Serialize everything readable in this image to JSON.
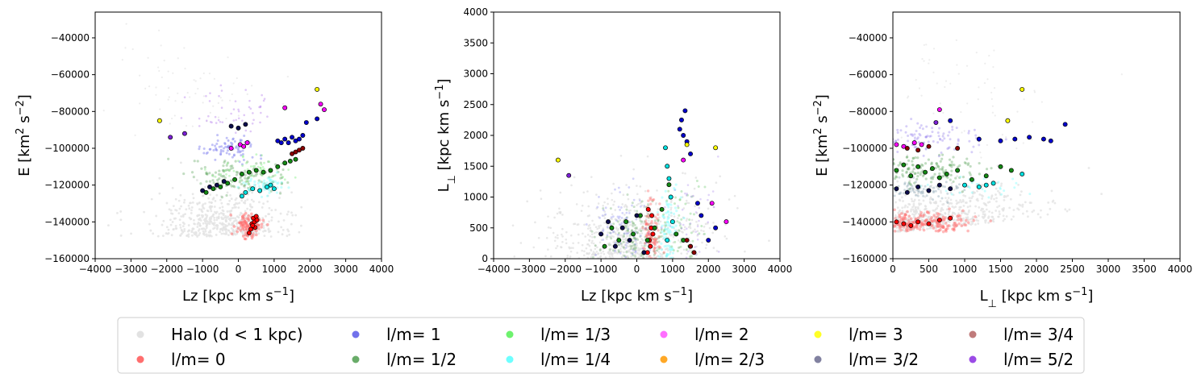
{
  "legend": {
    "entries": [
      {
        "label": "Halo (d < 1 kpc)",
        "color": "#e2e2e2"
      },
      {
        "label": "l/m= 0",
        "color": "#ff5555"
      },
      {
        "label": "l/m= 1",
        "color": "#5858e8"
      },
      {
        "label": "l/m= 1/2",
        "color": "#4f9d4f"
      },
      {
        "label": "l/m= 1/3",
        "color": "#55f055"
      },
      {
        "label": "l/m= 1/4",
        "color": "#55ffff"
      },
      {
        "label": "l/m= 2",
        "color": "#ff55ff"
      },
      {
        "label": "l/m= 2/3",
        "color": "#ff9900"
      },
      {
        "label": "l/m= 3",
        "color": "#ffff00"
      },
      {
        "label": "l/m= 3/2",
        "color": "#6b6b8f"
      },
      {
        "label": "l/m= 3/4",
        "color": "#b56464"
      },
      {
        "label": "l/m= 5/2",
        "color": "#8a2be2"
      }
    ]
  },
  "chart_data": [
    {
      "type": "scatter",
      "xlabel": "Lz [kpc km s$^{-1}$]",
      "ylabel": "E [km$^2$ s$^{-2}$]",
      "xlim": [
        -4000,
        4000
      ],
      "ylim": [
        -160000,
        -26000
      ],
      "xticks": [
        "−4000",
        "−3000",
        "−2000",
        "−1000",
        "0",
        "1000",
        "2000",
        "3000",
        "4000"
      ],
      "xtick_values": [
        -4000,
        -3000,
        -2000,
        -1000,
        0,
        1000,
        2000,
        3000,
        4000
      ],
      "yticks": [
        "−40000",
        "−60000",
        "−80000",
        "−100000",
        "−120000",
        "−140000",
        "−160000"
      ],
      "ytick_values": [
        -40000,
        -60000,
        -80000,
        -100000,
        -120000,
        -140000,
        -160000
      ],
      "series": [
        {
          "name": "l/m= 0",
          "x": [
            420,
            380,
            450,
            500,
            470,
            350,
            400,
            520,
            300
          ],
          "y": [
            -138000,
            -141000,
            -140000,
            -137000,
            -143000,
            -144000,
            -142000,
            -139000,
            -146000
          ]
        },
        {
          "name": "l/m= 1",
          "x": [
            1100,
            1300,
            1500,
            1700,
            1800,
            1400,
            1600,
            2200,
            1900,
            1200
          ],
          "y": [
            -96000,
            -95000,
            -94000,
            -95000,
            -93000,
            -97000,
            -96000,
            -84000,
            -86000,
            -97000
          ]
        },
        {
          "name": "l/m= 1/2",
          "x": [
            -900,
            -700,
            -500,
            -300,
            -100,
            100,
            300,
            500,
            700,
            900,
            1100,
            1300,
            1450,
            1600
          ],
          "y": [
            -124000,
            -122000,
            -121000,
            -119000,
            -117000,
            -114000,
            -113000,
            -112000,
            -113000,
            -112000,
            -110000,
            -108000,
            -107000,
            -106000
          ]
        },
        {
          "name": "l/m= 1/4",
          "x": [
            100,
            200,
            400,
            600,
            800,
            900,
            1000
          ],
          "y": [
            -126000,
            -124000,
            -122000,
            -123000,
            -121000,
            -120000,
            -122000
          ]
        },
        {
          "name": "l/m= 2",
          "x": [
            -200,
            50,
            150,
            250,
            2300,
            2400,
            1300
          ],
          "y": [
            -100000,
            -98000,
            -99000,
            -97000,
            -76000,
            -79000,
            -78000
          ]
        },
        {
          "name": "l/m= 3",
          "x": [
            -2200,
            2200
          ],
          "y": [
            -85000,
            -68000
          ]
        },
        {
          "name": "l/m= 3/2",
          "x": [
            -1000,
            -800,
            -600,
            -400,
            -200,
            0,
            200
          ],
          "y": [
            -123000,
            -121000,
            -120000,
            -118000,
            -88000,
            -89000,
            -87000
          ]
        },
        {
          "name": "l/m= 3/4",
          "x": [
            1500,
            1600,
            1700,
            1800
          ],
          "y": [
            -103000,
            -102000,
            -101000,
            -100000
          ]
        },
        {
          "name": "l/m= 5/2",
          "x": [
            -1900,
            -1500
          ],
          "y": [
            -94000,
            -92000
          ]
        }
      ]
    },
    {
      "type": "scatter",
      "xlabel": "Lz [kpc km s$^{-1}$]",
      "ylabel": "L$_\\perp$ [kpc km s$^{-1}$]",
      "xlim": [
        -4000,
        4000
      ],
      "ylim": [
        0,
        4000
      ],
      "xticks": [
        "−4000",
        "−3000",
        "−2000",
        "−1000",
        "0",
        "1000",
        "2000",
        "3000",
        "4000"
      ],
      "xtick_values": [
        -4000,
        -3000,
        -2000,
        -1000,
        0,
        1000,
        2000,
        3000,
        4000
      ],
      "yticks": [
        "0",
        "500",
        "1000",
        "1500",
        "2000",
        "2500",
        "3000",
        "3500",
        "4000"
      ],
      "ytick_values": [
        0,
        500,
        1000,
        1500,
        2000,
        2500,
        3000,
        3500,
        4000
      ],
      "series": [
        {
          "name": "l/m= 0",
          "x": [
            300,
            350,
            400,
            420,
            380,
            450,
            320
          ],
          "y": [
            100,
            300,
            500,
            700,
            200,
            400,
            800
          ]
        },
        {
          "name": "l/m= 1",
          "x": [
            1200,
            1250,
            1300,
            1350,
            1400,
            1500,
            1700,
            1800,
            2200,
            2000
          ],
          "y": [
            2100,
            2250,
            2000,
            2400,
            1900,
            1700,
            900,
            700,
            500,
            300
          ]
        },
        {
          "name": "l/m= 1/2",
          "x": [
            -900,
            -700,
            -500,
            -300,
            -100,
            100,
            300,
            500,
            700,
            900,
            1100,
            1300,
            1500
          ],
          "y": [
            200,
            500,
            300,
            600,
            400,
            700,
            300,
            500,
            800,
            1200,
            400,
            300,
            200
          ]
        },
        {
          "name": "l/m= 1/4",
          "x": [
            800,
            850,
            900,
            950,
            1000,
            850
          ],
          "y": [
            1800,
            1500,
            1300,
            1000,
            600,
            300
          ]
        },
        {
          "name": "l/m= 2",
          "x": [
            2100,
            2500,
            1300
          ],
          "y": [
            900,
            600,
            1600
          ]
        },
        {
          "name": "l/m= 3",
          "x": [
            -2200,
            1400,
            2200
          ],
          "y": [
            1600,
            1850,
            1800
          ]
        },
        {
          "name": "l/m= 3/2",
          "x": [
            -1000,
            -800,
            -600,
            -400,
            -200,
            0,
            200
          ],
          "y": [
            400,
            600,
            200,
            500,
            300,
            700,
            100
          ]
        },
        {
          "name": "l/m= 3/4",
          "x": [
            1400,
            1500,
            1600
          ],
          "y": [
            300,
            200,
            100
          ]
        },
        {
          "name": "l/m= 5/2",
          "x": [
            -1900
          ],
          "y": [
            1350
          ]
        }
      ]
    },
    {
      "type": "scatter",
      "xlabel": "L$_\\perp$ [kpc km s$^{-1}$]",
      "ylabel": "E [km$^2$ s$^{-2}$]",
      "xlim": [
        0,
        4000
      ],
      "ylim": [
        -160000,
        -26000
      ],
      "xticks": [
        "0",
        "500",
        "1000",
        "1500",
        "2000",
        "2500",
        "3000",
        "3500",
        "4000"
      ],
      "xtick_values": [
        0,
        500,
        1000,
        1500,
        2000,
        2500,
        3000,
        3500,
        4000
      ],
      "yticks": [
        "−40000",
        "−60000",
        "−80000",
        "−100000",
        "−120000",
        "−140000",
        "−160000"
      ],
      "ytick_values": [
        -40000,
        -60000,
        -80000,
        -100000,
        -120000,
        -140000,
        -160000
      ],
      "series": [
        {
          "name": "l/m= 0",
          "x": [
            50,
            150,
            250,
            350,
            500,
            650,
            800
          ],
          "y": [
            -140000,
            -141000,
            -142000,
            -140000,
            -141000,
            -139000,
            -138000
          ]
        },
        {
          "name": "l/m= 1",
          "x": [
            1200,
            1500,
            1700,
            1900,
            2100,
            2200,
            2400,
            800
          ],
          "y": [
            -95000,
            -96000,
            -95000,
            -94000,
            -95000,
            -96000,
            -87000,
            -85000
          ]
        },
        {
          "name": "l/m= 1/2",
          "x": [
            50,
            150,
            250,
            350,
            450,
            550,
            650,
            750,
            900,
            1100,
            1300,
            1500,
            1650
          ],
          "y": [
            -112000,
            -109000,
            -115000,
            -110000,
            -113000,
            -111000,
            -116000,
            -114000,
            -112000,
            -117000,
            -115000,
            -110000,
            -112000
          ]
        },
        {
          "name": "l/m= 1/4",
          "x": [
            1000,
            1200,
            1300,
            1400,
            1800
          ],
          "y": [
            -120000,
            -121000,
            -120000,
            -119000,
            -114000
          ]
        },
        {
          "name": "l/m= 2",
          "x": [
            50,
            150,
            300,
            400,
            650
          ],
          "y": [
            -98000,
            -99000,
            -97000,
            -98000,
            -79000
          ]
        },
        {
          "name": "l/m= 3",
          "x": [
            1600,
            1800
          ],
          "y": [
            -85000,
            -68000
          ]
        },
        {
          "name": "l/m= 3/2",
          "x": [
            50,
            200,
            350,
            500,
            650,
            800
          ],
          "y": [
            -122000,
            -124000,
            -121000,
            -123000,
            -120000,
            -122000
          ]
        },
        {
          "name": "l/m= 3/4",
          "x": [
            200,
            350,
            500,
            900
          ],
          "y": [
            -100000,
            -101000,
            -99000,
            -100000
          ]
        },
        {
          "name": "l/m= 5/2",
          "x": [
            600
          ],
          "y": [
            -86000
          ]
        }
      ]
    }
  ]
}
